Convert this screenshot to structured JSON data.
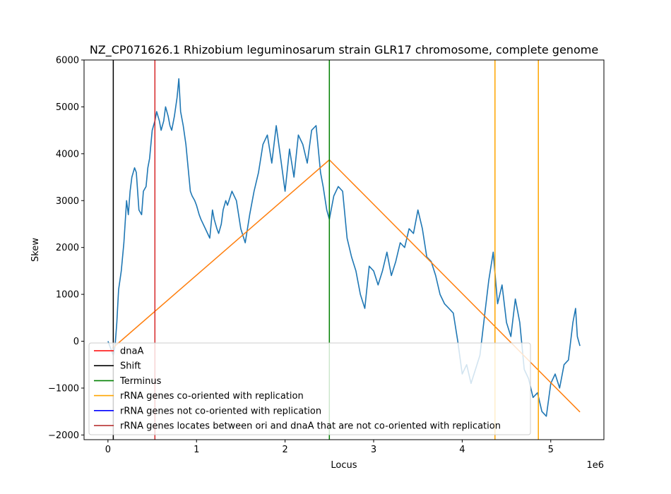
{
  "chart_data": {
    "type": "line",
    "title": "NZ_CP071626.1 Rhizobium leguminosarum strain GLR17 chromosome, complete genome",
    "xlabel": "Locus",
    "ylabel": "Skew",
    "x_offset_label": "1e6",
    "xlim": [
      -0.27,
      5.6
    ],
    "ylim": [
      -2100,
      6000
    ],
    "xticks": [
      0,
      1,
      2,
      3,
      4,
      5
    ],
    "xtick_labels": [
      "0",
      "1",
      "2",
      "3",
      "4",
      "5"
    ],
    "yticks": [
      -2000,
      -1000,
      0,
      1000,
      2000,
      3000,
      4000,
      5000,
      6000
    ],
    "ytick_labels": [
      "−2000",
      "−1000",
      "0",
      "1000",
      "2000",
      "3000",
      "4000",
      "5000",
      "6000"
    ],
    "grid": false,
    "legend_position": "lower-left",
    "series": [
      {
        "name": "",
        "color": "#1f77b4",
        "x": [
          0.0,
          0.03,
          0.06,
          0.08,
          0.1,
          0.12,
          0.15,
          0.18,
          0.21,
          0.23,
          0.25,
          0.27,
          0.3,
          0.32,
          0.35,
          0.38,
          0.4,
          0.43,
          0.45,
          0.47,
          0.5,
          0.53,
          0.55,
          0.58,
          0.6,
          0.63,
          0.65,
          0.68,
          0.7,
          0.72,
          0.75,
          0.78,
          0.8,
          0.82,
          0.85,
          0.88,
          0.9,
          0.93,
          0.95,
          0.98,
          1.0,
          1.03,
          1.05,
          1.1,
          1.15,
          1.18,
          1.2,
          1.23,
          1.25,
          1.28,
          1.3,
          1.33,
          1.35,
          1.4,
          1.45,
          1.5,
          1.55,
          1.6,
          1.65,
          1.7,
          1.75,
          1.8,
          1.85,
          1.9,
          1.95,
          2.0,
          2.05,
          2.1,
          2.15,
          2.2,
          2.25,
          2.3,
          2.35,
          2.4,
          2.43,
          2.47,
          2.5,
          2.55,
          2.6,
          2.65,
          2.7,
          2.75,
          2.8,
          2.85,
          2.9,
          2.95,
          3.0,
          3.05,
          3.1,
          3.15,
          3.2,
          3.25,
          3.3,
          3.35,
          3.4,
          3.45,
          3.5,
          3.55,
          3.6,
          3.65,
          3.7,
          3.75,
          3.8,
          3.85,
          3.9,
          3.95,
          4.0,
          4.05,
          4.1,
          4.15,
          4.2,
          4.25,
          4.3,
          4.35,
          4.4,
          4.45,
          4.5,
          4.55,
          4.6,
          4.65,
          4.7,
          4.75,
          4.8,
          4.85,
          4.9,
          4.95,
          5.0,
          5.05,
          5.1,
          5.15,
          5.2,
          5.25,
          5.28,
          5.3,
          5.33
        ],
        "y": [
          0,
          -150,
          -300,
          -100,
          400,
          1100,
          1500,
          2100,
          3000,
          2700,
          3200,
          3500,
          3700,
          3600,
          2800,
          2700,
          3200,
          3300,
          3700,
          3900,
          4500,
          4700,
          4900,
          4700,
          4500,
          4700,
          5000,
          4800,
          4600,
          4500,
          4800,
          5200,
          5600,
          4900,
          4600,
          4200,
          3800,
          3200,
          3100,
          3000,
          2900,
          2700,
          2600,
          2400,
          2200,
          2800,
          2600,
          2400,
          2300,
          2500,
          2800,
          3000,
          2900,
          3200,
          3000,
          2400,
          2100,
          2700,
          3200,
          3600,
          4200,
          4400,
          3800,
          4600,
          3900,
          3200,
          4100,
          3500,
          4400,
          4200,
          3800,
          4500,
          4600,
          3600,
          3300,
          2800,
          2600,
          3100,
          3300,
          3200,
          2200,
          1800,
          1500,
          1000,
          700,
          1600,
          1500,
          1200,
          1500,
          1900,
          1400,
          1700,
          2100,
          2000,
          2400,
          2300,
          2800,
          2400,
          1800,
          1700,
          1400,
          1000,
          800,
          700,
          600,
          0,
          -700,
          -500,
          -900,
          -600,
          -300,
          500,
          1300,
          1900,
          800,
          1200,
          400,
          100,
          900,
          400,
          -600,
          -800,
          -1200,
          -1100,
          -1500,
          -1600,
          -900,
          -700,
          -1000,
          -500,
          -400,
          400,
          700,
          100,
          -100
        ]
      },
      {
        "name": "",
        "color": "#ff7f0e",
        "x": [
          0.05,
          2.5,
          5.33
        ],
        "y": [
          -150,
          3870,
          -1510
        ]
      }
    ],
    "vertical_lines": [
      {
        "label": "Shift",
        "x": 0.06,
        "color": "#000000"
      },
      {
        "label": "dnaA",
        "x": 0.53,
        "color": "#d62728"
      },
      {
        "label": "Terminus",
        "x": 2.5,
        "color": "#008000"
      },
      {
        "label": "rRNA genes co-oriented with replication",
        "x": 4.37,
        "color": "#ffa500"
      },
      {
        "label": "rRNA genes co-oriented with replication",
        "x": 4.86,
        "color": "#ffa500"
      }
    ],
    "legend": [
      {
        "label": "dnaA",
        "color": "#ff0000"
      },
      {
        "label": "Shift",
        "color": "#000000"
      },
      {
        "label": "Terminus",
        "color": "#008000"
      },
      {
        "label": "rRNA genes co-oriented with replication",
        "color": "#ffa500"
      },
      {
        "label": "rRNA genes not co-oriented with replication",
        "color": "#0000ff"
      },
      {
        "label": "rRNA genes locates between ori and dnaA that are not co-oriented with replication",
        "color": "#b22222"
      }
    ]
  }
}
